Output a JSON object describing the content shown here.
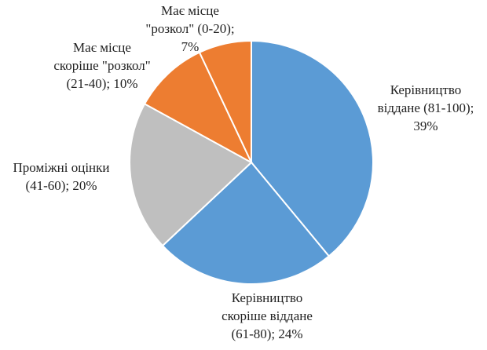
{
  "chart_data": {
    "type": "pie",
    "title": "",
    "start_angle_deg": 0,
    "direction": "clockwise",
    "slices": [
      {
        "label_lines": [
          "Керівництво",
          "віддане (81-100);",
          "39%"
        ],
        "value": 39,
        "color": "#5b9bd5"
      },
      {
        "label_lines": [
          "Керівництво",
          "скоріше віддане",
          "(61-80); 24%"
        ],
        "value": 24,
        "color": "#5b9bd5"
      },
      {
        "label_lines": [
          "Проміжні оцінки",
          "(41-60); 20%"
        ],
        "value": 20,
        "color": "#bfbfbf"
      },
      {
        "label_lines": [
          "Має місце",
          "скоріше \"розкол\"",
          "(21-40); 10%"
        ],
        "value": 10,
        "color": "#ed7d31"
      },
      {
        "label_lines": [
          "Має місце",
          "\"розкол\" (0-20);",
          "7%"
        ],
        "value": 7,
        "color": "#ed7d31"
      }
    ]
  }
}
